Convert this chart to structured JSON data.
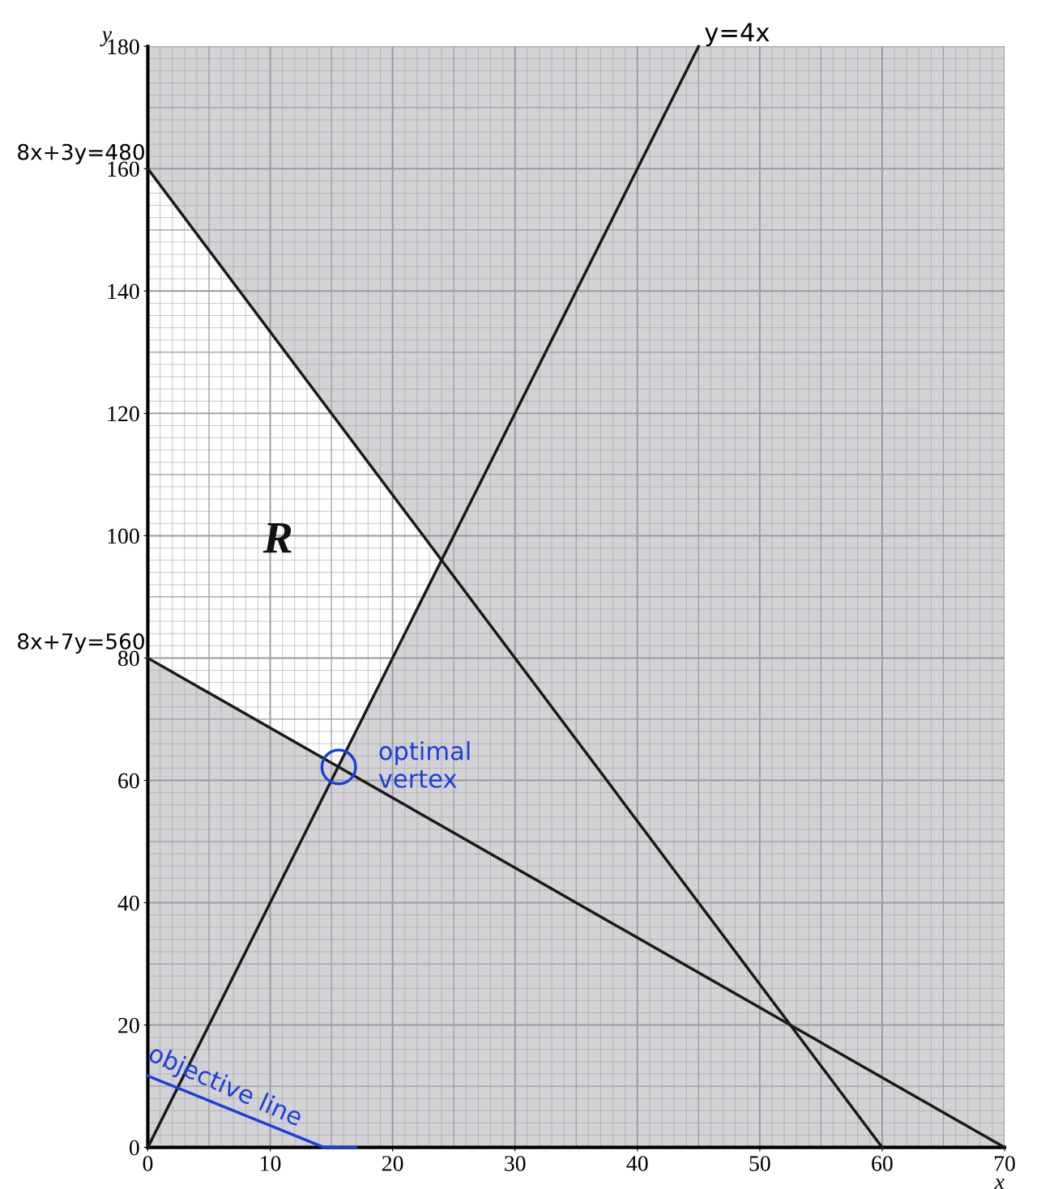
{
  "chart_data": {
    "type": "line",
    "xlabel": "x",
    "ylabel": "y",
    "xlim": [
      0,
      70
    ],
    "ylim": [
      0,
      180
    ],
    "xticks": [
      0,
      10,
      20,
      30,
      40,
      50,
      60,
      70
    ],
    "yticks": [
      0,
      20,
      40,
      60,
      80,
      100,
      120,
      140,
      160,
      180
    ],
    "grid": true,
    "series": [
      {
        "color": "#1a1a1a",
        "x": [
          0,
          60
        ],
        "values": [
          160,
          0
        ]
      },
      {
        "color": "#1a1a1a",
        "x": [
          0,
          70
        ],
        "values": [
          80,
          0
        ]
      },
      {
        "color": "#1a1a1a",
        "x": [
          0,
          45
        ],
        "values": [
          0,
          180
        ]
      },
      {
        "color": "#1a3fe0",
        "x": [
          0,
          14.4,
          17
        ],
        "values": [
          11.7,
          0,
          0
        ]
      },
      {
        "type": "scatter",
        "color": "#1a3fe0",
        "marker": "circle",
        "x": [
          15.6
        ],
        "values": [
          62.2
        ]
      }
    ],
    "annotations": [
      {
        "text": "8x+3y=480",
        "x": 0,
        "y": 160
      },
      {
        "text": "8x+7y=560",
        "x": 0,
        "y": 80
      },
      {
        "text": "y=4x",
        "x": 45,
        "y": 180
      },
      "R",
      {
        "text": "optimal\nvertex",
        "x": 15.6,
        "y": 62.2
      },
      "objective line"
    ]
  }
}
